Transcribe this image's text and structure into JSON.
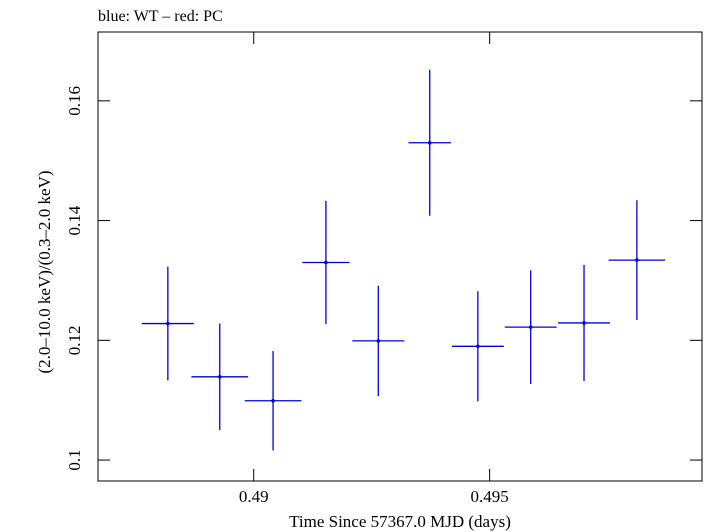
{
  "chart_data": {
    "type": "scatter",
    "title": "blue: WT – red: PC",
    "xlabel": "Time Since 57367.0 MJD (days)",
    "ylabel": "(2.0–10.0 keV)/(0.3–2.0 keV)",
    "xlim": [
      0.4867,
      0.4995
    ],
    "ylim": [
      0.0965,
      0.1715
    ],
    "x_ticks": [
      {
        "value": 0.49,
        "label": "0.49"
      },
      {
        "value": 0.495,
        "label": "0.495"
      }
    ],
    "y_ticks": [
      {
        "value": 0.1,
        "label": "0.1"
      },
      {
        "value": 0.12,
        "label": "0.12"
      },
      {
        "value": 0.14,
        "label": "0.14"
      },
      {
        "value": 0.16,
        "label": "0.16"
      }
    ],
    "series": [
      {
        "name": "WT",
        "color": "#0000dd",
        "points": [
          {
            "x": 0.48818,
            "xerr": 0.00055,
            "y": 0.1228,
            "yerr": 0.0095
          },
          {
            "x": 0.48928,
            "xerr": 0.0006,
            "y": 0.1139,
            "yerr": 0.0089
          },
          {
            "x": 0.49041,
            "xerr": 0.0006,
            "y": 0.1099,
            "yerr": 0.0083
          },
          {
            "x": 0.49153,
            "xerr": 0.0005,
            "y": 0.133,
            "yerr": 0.0103
          },
          {
            "x": 0.49264,
            "xerr": 0.00055,
            "y": 0.1199,
            "yerr": 0.0092
          },
          {
            "x": 0.49373,
            "xerr": 0.00045,
            "y": 0.153,
            "yerr": 0.0122
          },
          {
            "x": 0.49475,
            "xerr": 0.00055,
            "y": 0.119,
            "yerr": 0.0092
          },
          {
            "x": 0.49587,
            "xerr": 0.00055,
            "y": 0.1222,
            "yerr": 0.0095
          },
          {
            "x": 0.497,
            "xerr": 0.00055,
            "y": 0.1229,
            "yerr": 0.0097
          },
          {
            "x": 0.49812,
            "xerr": 0.0006,
            "y": 0.1334,
            "yerr": 0.01
          }
        ]
      }
    ]
  }
}
